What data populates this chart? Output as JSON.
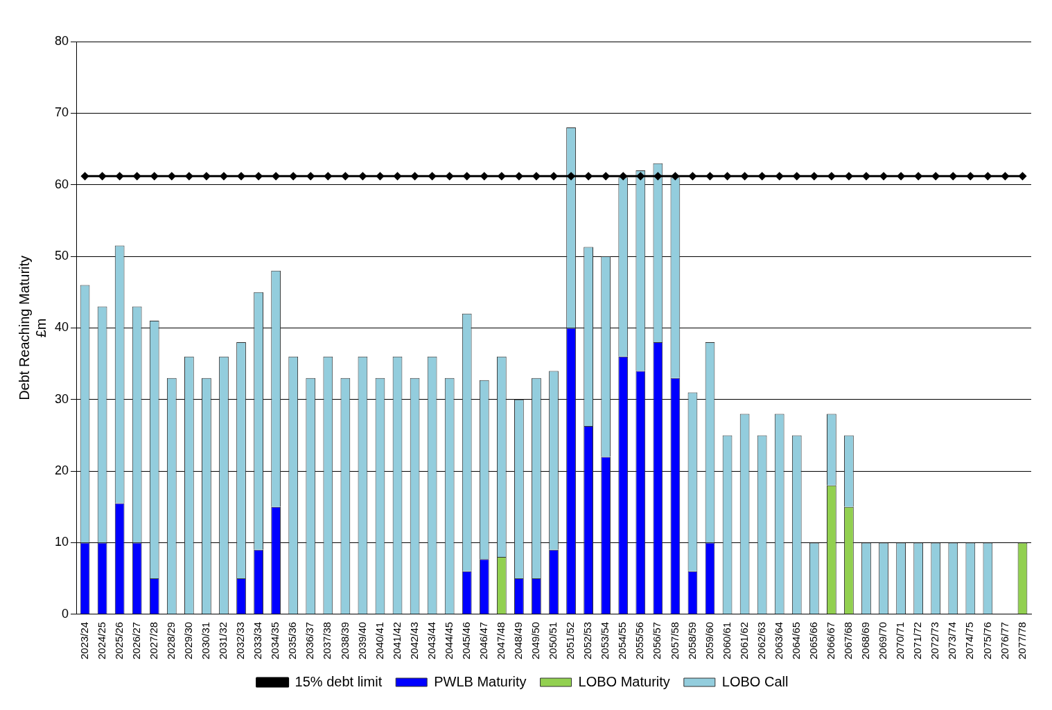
{
  "chart_data": {
    "type": "bar",
    "stacked": true,
    "ylabel": "Debt Reaching Maturity\n£m",
    "categories": [
      "2023/24",
      "2024/25",
      "2025/26",
      "2026/27",
      "2027/28",
      "2028/29",
      "2029/30",
      "2030/31",
      "2031/32",
      "2032/33",
      "2033/34",
      "2034/35",
      "2035/36",
      "2036/37",
      "2037/38",
      "2038/39",
      "2039/40",
      "2040/41",
      "2041/42",
      "2042/43",
      "2043/44",
      "2044/45",
      "2045/46",
      "2046/47",
      "2047/48",
      "2048/49",
      "2049/50",
      "2050/51",
      "2051/52",
      "2052/53",
      "2053/54",
      "2054/55",
      "2055/56",
      "2056/57",
      "2057/58",
      "2058/59",
      "2059/60",
      "2060/61",
      "2061/62",
      "2062/63",
      "2063/64",
      "2064/65",
      "2065/66",
      "2066/67",
      "2067/68",
      "2068/69",
      "2069/70",
      "2070/71",
      "2071/72",
      "2072/73",
      "2073/74",
      "2074/75",
      "2075/76",
      "2076/77",
      "2077/78"
    ],
    "series": [
      {
        "name": "PWLB Maturity",
        "color": "#0000ff",
        "values": [
          10,
          10,
          15.5,
          10,
          5,
          null,
          null,
          null,
          null,
          5,
          9,
          15,
          null,
          null,
          null,
          null,
          null,
          null,
          null,
          null,
          null,
          null,
          6,
          7.7,
          null,
          5,
          5,
          9,
          40,
          26.3,
          22,
          36,
          34,
          38,
          33,
          6,
          10,
          null,
          null,
          null,
          null,
          null,
          null,
          null,
          null,
          null,
          null,
          null,
          null,
          null,
          null,
          null,
          null,
          null,
          null
        ]
      },
      {
        "name": "LOBO Maturity",
        "color": "#92d050",
        "values": [
          null,
          null,
          null,
          null,
          null,
          null,
          null,
          null,
          null,
          null,
          null,
          null,
          null,
          null,
          null,
          null,
          null,
          null,
          null,
          null,
          null,
          null,
          null,
          null,
          8,
          null,
          null,
          null,
          null,
          null,
          null,
          null,
          null,
          null,
          null,
          null,
          null,
          null,
          null,
          null,
          null,
          null,
          null,
          18,
          15,
          null,
          null,
          null,
          null,
          null,
          null,
          null,
          null,
          null,
          10
        ]
      },
      {
        "name": "LOBO Call",
        "color": "#93cddd",
        "values": [
          36,
          33,
          36,
          33,
          36,
          33,
          36,
          33,
          36,
          33,
          36,
          33,
          36,
          33,
          36,
          33,
          36,
          33,
          36,
          33,
          36,
          33,
          36,
          25,
          28,
          25,
          28,
          25,
          28,
          25,
          28,
          25,
          28,
          25,
          28,
          25,
          28,
          25,
          28,
          25,
          28,
          25,
          10,
          10,
          10,
          10,
          10,
          10,
          10,
          10,
          10,
          10,
          10,
          null,
          null
        ]
      },
      {
        "name": "15% debt limit",
        "type": "line",
        "color": "#000000",
        "marker": "diamond",
        "values": [
          61.2,
          61.2,
          61.2,
          61.2,
          61.2,
          61.2,
          61.2,
          61.2,
          61.2,
          61.2,
          61.2,
          61.2,
          61.2,
          61.2,
          61.2,
          61.2,
          61.2,
          61.2,
          61.2,
          61.2,
          61.2,
          61.2,
          61.2,
          61.2,
          61.2,
          61.2,
          61.2,
          61.2,
          61.2,
          61.2,
          61.2,
          61.2,
          61.2,
          61.2,
          61.2,
          61.2,
          61.2,
          61.2,
          61.2,
          61.2,
          61.2,
          61.2,
          61.2,
          61.2,
          61.2,
          61.2,
          61.2,
          61.2,
          61.2,
          61.2,
          61.2,
          61.2,
          61.2,
          61.2,
          61.2
        ]
      }
    ],
    "ylim": [
      0,
      80
    ],
    "yticks": [
      0,
      10,
      20,
      30,
      40,
      50,
      60,
      70,
      80
    ],
    "grid": "y",
    "legend": "bottom"
  }
}
